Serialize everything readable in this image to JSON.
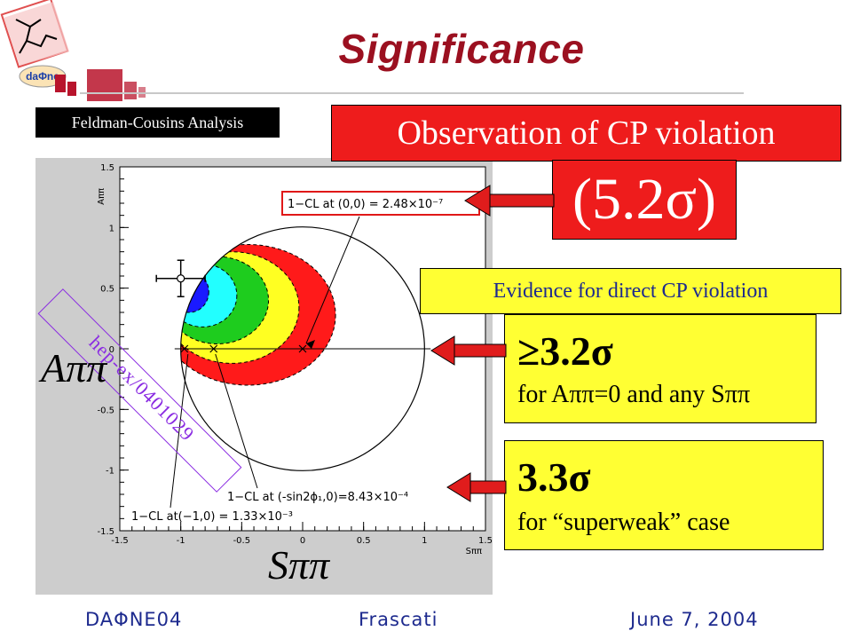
{
  "title": "Significance",
  "fc_label": "Feldman-Cousins Analysis",
  "observation_label": "Observation of CP violation",
  "observation_sigma": "(5.2σ)",
  "evidence_label": "Evidence for direct CP violation",
  "box_direct": {
    "sigma": "≥3.2σ",
    "text": "for Aππ=0 and any Sππ"
  },
  "box_superweak": {
    "sigma": "3.3σ",
    "text": "for “superweak” case"
  },
  "ref_tag": "hep-ex/0401029",
  "big_axis_labels": {
    "a": "Aππ",
    "s": "Sππ"
  },
  "footer": {
    "left": "DAΦNE04",
    "center": "Frascati",
    "right": "June 7, 2004"
  },
  "colors": {
    "title": "#9b1020",
    "red_box": "#ee1c1c",
    "yellow_box": "#ffff33",
    "footer": "#1d2a8e",
    "cl_blue": "#1a1aff",
    "cl_cyan": "#22ffff",
    "cl_green": "#1ecc1e",
    "cl_yellow": "#ffff22",
    "cl_red": "#ff1a1a"
  },
  "chart_data": {
    "type": "scatter",
    "xlabel": "Sππ",
    "ylabel": "Aππ",
    "xlim": [
      -1.5,
      1.5
    ],
    "ylim": [
      -1.5,
      1.5
    ],
    "xticks": [
      "-1.5",
      "-1",
      "-0.5",
      "0",
      "0.5",
      "1",
      "1.5"
    ],
    "yticks": [
      "-1.5",
      "-1",
      "-0.5",
      "0",
      "0.5",
      "1",
      "1.5"
    ],
    "physical_boundary": {
      "type": "unit circle",
      "center": [
        0,
        0
      ],
      "radius": 1
    },
    "measurement": {
      "S": -1.0,
      "A": 0.58,
      "S_err": 0.2,
      "A_err": 0.15
    },
    "cl_regions": [
      {
        "level": 1,
        "color": "blue"
      },
      {
        "level": 2,
        "color": "cyan"
      },
      {
        "level": 3,
        "color": "green"
      },
      {
        "level": 4,
        "color": "yellow"
      },
      {
        "level": 5,
        "color": "red"
      }
    ],
    "markers": [
      {
        "S": -0.97,
        "A": 0
      },
      {
        "S": -0.73,
        "A": 0
      },
      {
        "S": 0,
        "A": 0
      }
    ],
    "annotations": [
      {
        "text": "1−CL at (0,0) = 2.48×10⁻⁷",
        "points_to": [
          0,
          0
        ]
      },
      {
        "text": "1−CL at (-sin2ϕ₁,0)=8.43×10⁻⁴",
        "points_to": [
          -0.73,
          0
        ]
      },
      {
        "text": "1−CL at(−1,0) = 1.33×10⁻³",
        "points_to": [
          -0.97,
          0
        ]
      }
    ]
  }
}
